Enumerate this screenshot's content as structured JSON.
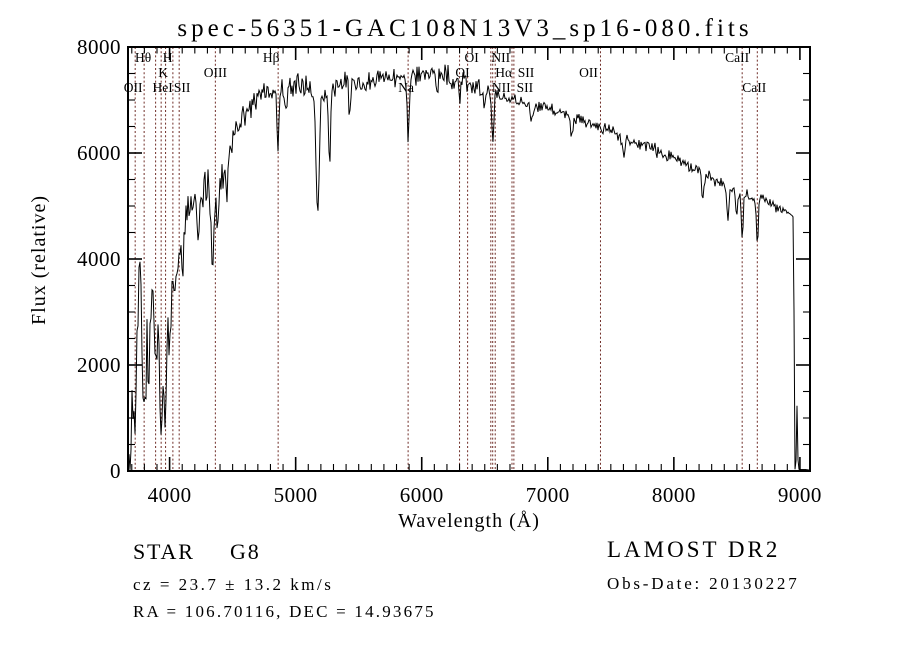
{
  "title": "spec-56351-GAC108N13V3_sp16-080.fits",
  "chart_data": {
    "type": "line",
    "title": "spec-56351-GAC108N13V3_sp16-080.fits",
    "xlabel": "Wavelength (Å)",
    "ylabel": "Flux (relative)",
    "xlim": [
      3670,
      9080
    ],
    "ylim": [
      0,
      8000
    ],
    "x_major_ticks": [
      4000,
      5000,
      6000,
      7000,
      8000,
      9000
    ],
    "x_minor_step": 100,
    "y_major_ticks": [
      0,
      2000,
      4000,
      6000,
      8000
    ],
    "y_minor_step": 500,
    "grid": false,
    "legend": "none",
    "frame_color": "#000000",
    "spectrum_color": "#000000",
    "line_marker_color": "#702e28",
    "spectral_lines": [
      {
        "label": "OII",
        "wavelength": 3727,
        "row": 3,
        "dx": -2
      },
      {
        "label": "Hθ",
        "wavelength": 3798,
        "row": 1,
        "dx": -1
      },
      {
        "label": "HeI",
        "wavelength": 3889,
        "row": 3,
        "dx": 7
      },
      {
        "label": "K",
        "wavelength": 3933,
        "row": 2,
        "dx": 2
      },
      {
        "label": "H",
        "wavelength": 3968,
        "row": 1,
        "dx": 2
      },
      {
        "label": null,
        "wavelength": 4026,
        "row": 0,
        "dx": 0
      },
      {
        "label": "SII",
        "wavelength": 4076,
        "row": 3,
        "dx": 3
      },
      {
        "label": "OIII",
        "wavelength": 4363,
        "row": 2,
        "dx": 0
      },
      {
        "label": "Hβ",
        "wavelength": 4861,
        "row": 1,
        "dx": -7
      },
      {
        "label": "Na",
        "wavelength": 5892,
        "row": 3,
        "dx": -2
      },
      {
        "label": "OI",
        "wavelength": 6300,
        "row": 2,
        "dx": 3
      },
      {
        "label": "OI",
        "wavelength": 6364,
        "row": 1,
        "dx": 4
      },
      {
        "label": "NII",
        "wavelength": 6548,
        "row": 1,
        "dx": 10
      },
      {
        "label": "Hα",
        "wavelength": 6563,
        "row": 2,
        "dx": 11
      },
      {
        "label": "NII",
        "wavelength": 6583,
        "row": 3,
        "dx": 6
      },
      {
        "label": "SII",
        "wavelength": 6716,
        "row": 2,
        "dx": 14
      },
      {
        "label": "SII",
        "wavelength": 6731,
        "row": 3,
        "dx": 11
      },
      {
        "label": "OII",
        "wavelength": 7418,
        "row": 2,
        "dx": -12
      },
      {
        "label": "CaII",
        "wavelength": 8542,
        "row": 1,
        "dx": -5
      },
      {
        "label": "CaII",
        "wavelength": 8662,
        "row": 3,
        "dx": -3
      }
    ],
    "spectrum_model": {
      "noise_seed": 13,
      "continuum": [
        [
          3670,
          150
        ],
        [
          3695,
          800
        ],
        [
          3715,
          1900
        ],
        [
          3735,
          2600
        ],
        [
          3755,
          3600
        ],
        [
          3768,
          4100
        ],
        [
          3782,
          2600
        ],
        [
          3800,
          1950
        ],
        [
          3825,
          2500
        ],
        [
          3850,
          3100
        ],
        [
          3875,
          2900
        ],
        [
          3900,
          3000
        ],
        [
          3930,
          2300
        ],
        [
          3960,
          2200
        ],
        [
          3990,
          2700
        ],
        [
          4020,
          3200
        ],
        [
          4060,
          3900
        ],
        [
          4100,
          4500
        ],
        [
          4140,
          4900
        ],
        [
          4180,
          5100
        ],
        [
          4240,
          5250
        ],
        [
          4300,
          5350
        ],
        [
          4360,
          5300
        ],
        [
          4420,
          5500
        ],
        [
          4470,
          6000
        ],
        [
          4530,
          6450
        ],
        [
          4600,
          6800
        ],
        [
          4680,
          7000
        ],
        [
          4780,
          7200
        ],
        [
          4880,
          7250
        ],
        [
          4980,
          7300
        ],
        [
          5080,
          7250
        ],
        [
          5180,
          7150
        ],
        [
          5280,
          7200
        ],
        [
          5380,
          7300
        ],
        [
          5480,
          7300
        ],
        [
          5580,
          7350
        ],
        [
          5700,
          7400
        ],
        [
          5820,
          7450
        ],
        [
          5950,
          7500
        ],
        [
          6080,
          7520
        ],
        [
          6200,
          7480
        ],
        [
          6320,
          7380
        ],
        [
          6450,
          7250
        ],
        [
          6580,
          7130
        ],
        [
          6700,
          7050
        ],
        [
          6820,
          6960
        ],
        [
          6950,
          6870
        ],
        [
          7100,
          6760
        ],
        [
          7250,
          6640
        ],
        [
          7400,
          6500
        ],
        [
          7550,
          6370
        ],
        [
          7700,
          6220
        ],
        [
          7850,
          6080
        ],
        [
          8000,
          5920
        ],
        [
          8150,
          5720
        ],
        [
          8300,
          5520
        ],
        [
          8450,
          5330
        ],
        [
          8600,
          5200
        ],
        [
          8720,
          5100
        ],
        [
          8830,
          4970
        ],
        [
          8900,
          4880
        ],
        [
          8948,
          4800
        ],
        [
          8956,
          2000
        ],
        [
          8960,
          30
        ],
        [
          9080,
          22
        ]
      ],
      "features": [
        [
          3727,
          1400,
          9
        ],
        [
          3797,
          900,
          9
        ],
        [
          3835,
          700,
          7
        ],
        [
          3889,
          800,
          8
        ],
        [
          3933,
          1500,
          9
        ],
        [
          3969,
          1400,
          9
        ],
        [
          4101,
          900,
          9
        ],
        [
          4226,
          800,
          8
        ],
        [
          4340,
          1400,
          11
        ],
        [
          4383,
          700,
          8
        ],
        [
          4455,
          500,
          8
        ],
        [
          4861,
          1000,
          9
        ],
        [
          4920,
          500,
          8
        ],
        [
          5174,
          2200,
          13
        ],
        [
          5269,
          1400,
          9
        ],
        [
          5430,
          600,
          8
        ],
        [
          5893,
          1100,
          8
        ],
        [
          6122,
          400,
          8
        ],
        [
          6300,
          350,
          7
        ],
        [
          6495,
          400,
          8
        ],
        [
          6563,
          950,
          8
        ],
        [
          6870,
          420,
          10
        ],
        [
          7190,
          300,
          10
        ],
        [
          7605,
          330,
          12
        ],
        [
          8230,
          450,
          9
        ],
        [
          8430,
          600,
          9
        ],
        [
          8498,
          550,
          7
        ],
        [
          8542,
          950,
          7
        ],
        [
          8662,
          900,
          7
        ],
        [
          8977,
          -1200,
          4
        ]
      ],
      "noise_profile": [
        [
          3670,
          500
        ],
        [
          3700,
          800
        ],
        [
          3730,
          900
        ],
        [
          3800,
          850
        ],
        [
          3900,
          800
        ],
        [
          3990,
          750
        ],
        [
          4050,
          600
        ],
        [
          4150,
          520
        ],
        [
          4300,
          480
        ],
        [
          4450,
          400
        ],
        [
          4600,
          330
        ],
        [
          4800,
          300
        ],
        [
          5000,
          320
        ],
        [
          5200,
          340
        ],
        [
          5400,
          300
        ],
        [
          5600,
          270
        ],
        [
          5900,
          250
        ],
        [
          6200,
          240
        ],
        [
          6500,
          190
        ],
        [
          6800,
          160
        ],
        [
          7100,
          150
        ],
        [
          7500,
          140
        ],
        [
          8000,
          145
        ],
        [
          8300,
          160
        ],
        [
          8600,
          140
        ],
        [
          8800,
          130
        ],
        [
          8950,
          15
        ],
        [
          9080,
          12
        ]
      ]
    }
  },
  "annotations": {
    "class_label": "STAR",
    "subclass": "G8",
    "survey": "LAMOST DR2",
    "cz": "cz = 23.7 ± 13.2 km/s",
    "ra_dec": "RA = 106.70116, DEC =  14.93675",
    "obs_date": "Obs-Date: 20130227"
  }
}
